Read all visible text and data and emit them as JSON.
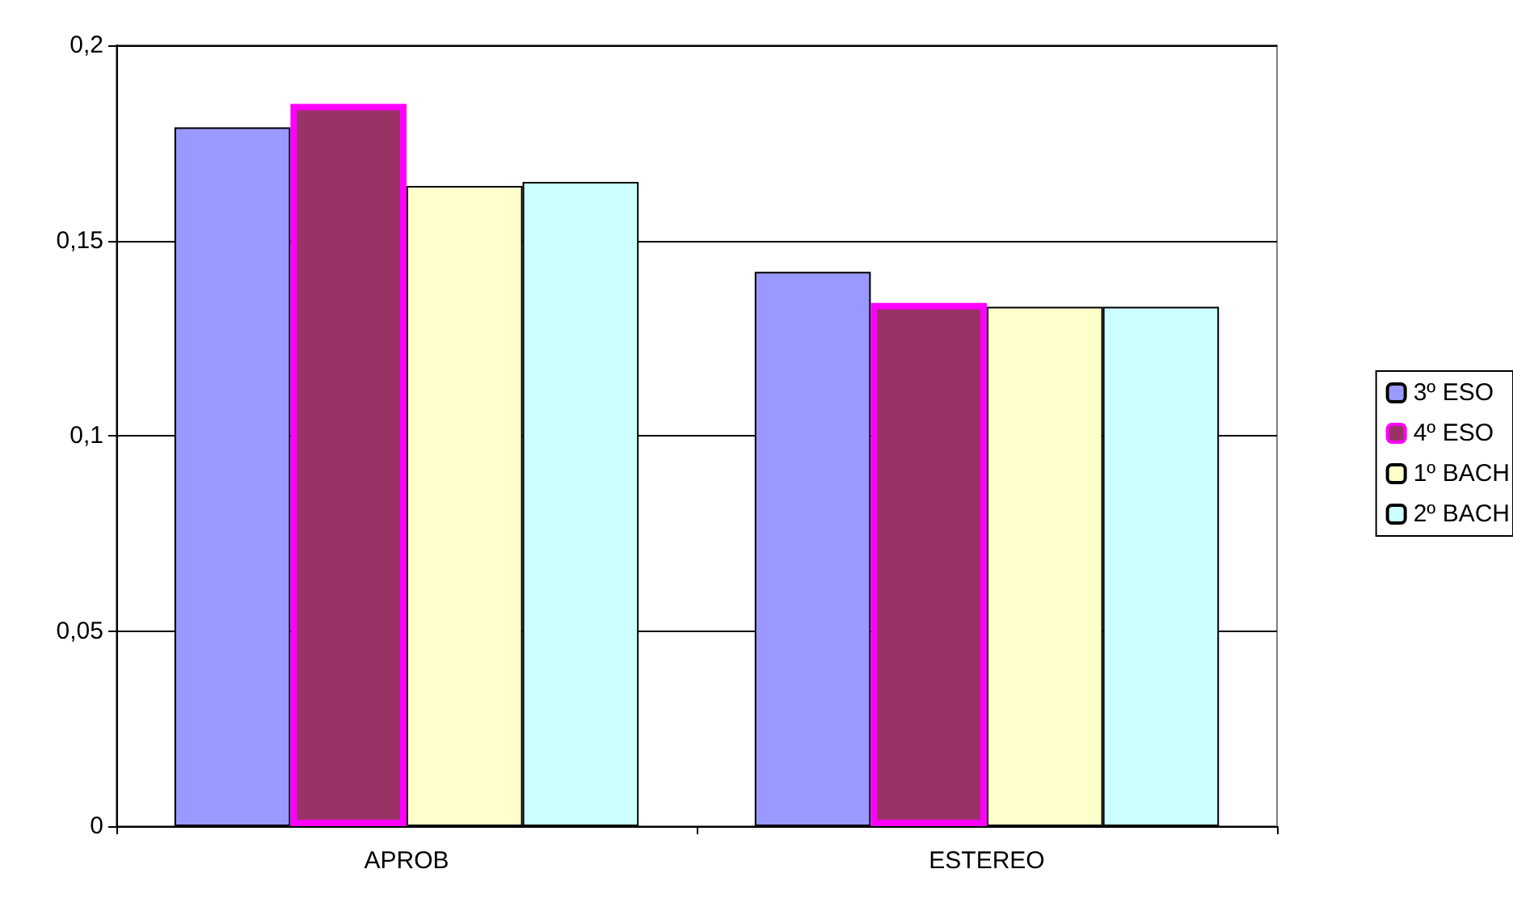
{
  "chart_data": {
    "type": "bar",
    "categories": [
      "APROB",
      "ESTEREO"
    ],
    "series": [
      {
        "name": "3º ESO",
        "color": "#9999ff",
        "values": [
          0.179,
          0.142
        ]
      },
      {
        "name": "4º ESO",
        "color": "#993366",
        "values": [
          0.185,
          0.134
        ]
      },
      {
        "name": "1º BACH",
        "color": "#ffffcc",
        "values": [
          0.164,
          0.133
        ]
      },
      {
        "name": "2º BACH",
        "color": "#ccffff",
        "values": [
          0.165,
          0.133
        ]
      }
    ],
    "ylim": [
      0,
      0.2
    ],
    "yticks": [
      0,
      {
        "value": 0.05,
        "label": "0,05"
      },
      {
        "value": 0.1,
        "label": "0,1"
      },
      {
        "value": 0.15,
        "label": "0,15"
      },
      {
        "value": 0.2,
        "label": "0,2"
      }
    ],
    "grid": "y",
    "legend": "right"
  }
}
